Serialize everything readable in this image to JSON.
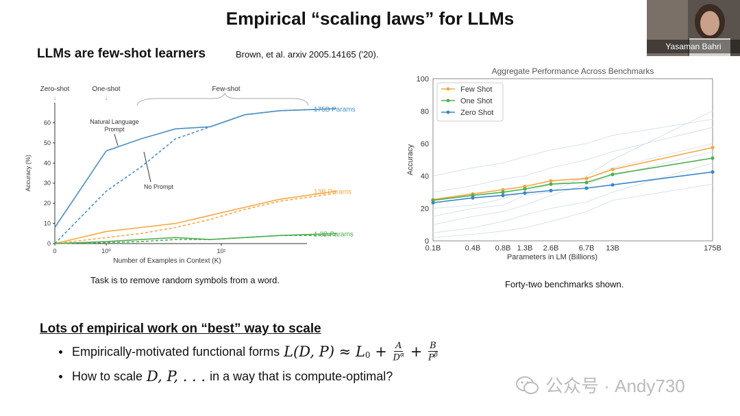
{
  "slide": {
    "title": "Empirical “scaling laws” for LLMs",
    "left_heading": "LLMs are few-shot learners",
    "citation": "Brown, et al. arxiv 2005.14165 ('20).",
    "left_caption": "Task is to remove random symbols from a word.",
    "right_caption": "Forty-two benchmarks shown.",
    "section_heading": "Lots of empirical work on “best” way to scale",
    "bullet1_text": "Empirically-motivated functional forms",
    "bullet1_formula": "L(D, P) ≈ L₀ + A/D^α + B/P^β",
    "bullet2_text_a": "How to scale",
    "bullet2_math": "D, P, . . .",
    "bullet2_text_b": "in a way that is compute-optimal?"
  },
  "webcam": {
    "name": "Yasaman Bahri"
  },
  "watermark": {
    "text": "公众号 · Andy730",
    "icon": "wechat-icon"
  },
  "chart_data": [
    {
      "type": "line",
      "xlabel": "Number of Examples in Context  (K)",
      "ylabel": "Accuracy (%)",
      "xscale": "log",
      "ylim": [
        0,
        70
      ],
      "y_ticks": [
        "0",
        "10",
        "20",
        "30",
        "40",
        "50",
        "60"
      ],
      "x_ticks": [
        "0",
        "10⁰",
        "10¹"
      ],
      "top_labels": [
        "Zero-shot",
        "One-shot",
        "Few-shot"
      ],
      "annotations": [
        "Natural Language\nPrompt",
        "No Prompt"
      ],
      "series": [
        {
          "name": "175B Params",
          "color": "#4a90c2",
          "style": "solid",
          "values": [
            [
              0,
              8
            ],
            [
              1,
              46
            ],
            [
              2,
              52
            ],
            [
              4,
              57
            ],
            [
              8,
              58
            ],
            [
              16,
              64
            ],
            [
              32,
              66
            ],
            [
              100,
              67
            ]
          ]
        },
        {
          "name": "175B Params",
          "color": "#4a90c2",
          "style": "dashed",
          "values": [
            [
              0,
              0
            ],
            [
              1,
              26
            ],
            [
              2,
              38
            ],
            [
              4,
              52
            ],
            [
              8,
              58
            ],
            [
              16,
              64
            ],
            [
              32,
              66
            ],
            [
              100,
              67
            ]
          ]
        },
        {
          "name": "13B Params",
          "color": "#f5a742",
          "style": "solid",
          "values": [
            [
              0,
              0
            ],
            [
              1,
              6
            ],
            [
              2,
              8
            ],
            [
              4,
              10
            ],
            [
              8,
              14
            ],
            [
              16,
              18
            ],
            [
              32,
              22
            ],
            [
              100,
              26
            ]
          ]
        },
        {
          "name": "13B Params",
          "color": "#f5a742",
          "style": "dashed",
          "values": [
            [
              0,
              0
            ],
            [
              1,
              3
            ],
            [
              2,
              5
            ],
            [
              4,
              8
            ],
            [
              8,
              12
            ],
            [
              16,
              17
            ],
            [
              32,
              21
            ],
            [
              100,
              25
            ]
          ]
        },
        {
          "name": "1.3B Params",
          "color": "#4caf50",
          "style": "solid",
          "values": [
            [
              0,
              0
            ],
            [
              1,
              1
            ],
            [
              2,
              2
            ],
            [
              4,
              3
            ],
            [
              8,
              2
            ],
            [
              16,
              3
            ],
            [
              32,
              4
            ],
            [
              100,
              5
            ]
          ]
        },
        {
          "name": "1.3B Params",
          "color": "#4caf50",
          "style": "dashed",
          "values": [
            [
              0,
              0
            ],
            [
              1,
              0.5
            ],
            [
              2,
              1
            ],
            [
              4,
              2
            ],
            [
              8,
              2
            ],
            [
              16,
              3
            ],
            [
              32,
              4
            ],
            [
              100,
              4
            ]
          ]
        }
      ]
    },
    {
      "type": "line",
      "title": "Aggregate Performance Across Benchmarks",
      "xlabel": "Parameters in LM (Billions)",
      "ylabel": "Accuracy",
      "ylim": [
        0,
        100
      ],
      "y_ticks": [
        "0",
        "20",
        "40",
        "60",
        "80",
        "100"
      ],
      "categories": [
        "0.1B",
        "0.4B",
        "0.8B",
        "1.3B",
        "2.6B",
        "6.7B",
        "13B",
        "175B"
      ],
      "legend_position": "top-left",
      "series": [
        {
          "name": "Few Shot",
          "color": "#f5a742",
          "values": [
            25.5,
            29,
            31.5,
            33.5,
            37,
            38.5,
            44,
            57.5
          ]
        },
        {
          "name": "One Shot",
          "color": "#4caf50",
          "values": [
            25,
            28,
            30,
            32,
            35,
            36,
            41,
            51
          ]
        },
        {
          "name": "Zero Shot",
          "color": "#3a86c8",
          "values": [
            23.5,
            26.5,
            28,
            29.5,
            31,
            32.5,
            34.5,
            42.5
          ]
        }
      ]
    }
  ]
}
